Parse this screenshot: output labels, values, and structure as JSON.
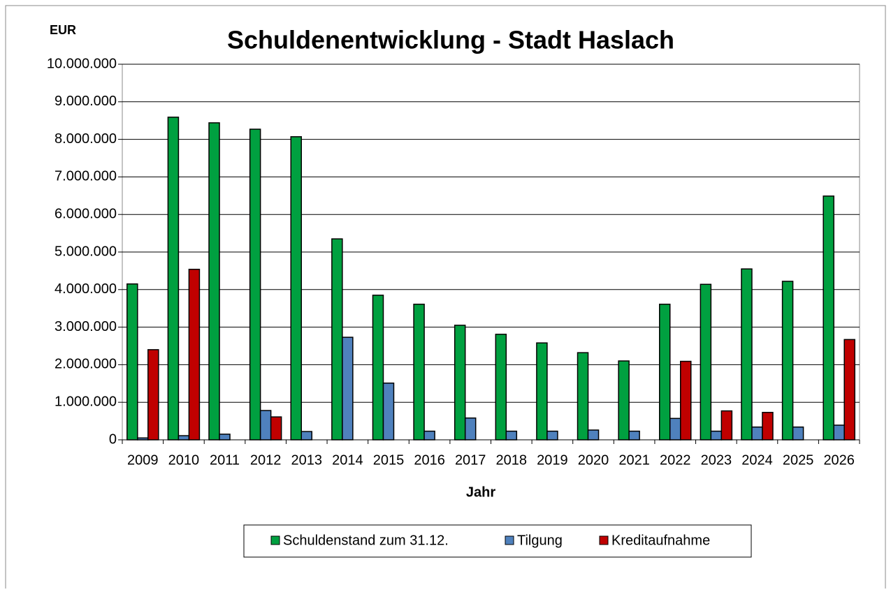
{
  "chart_data": {
    "type": "bar",
    "title": "Schuldenentwicklung - Stadt Haslach",
    "y_label": "EUR",
    "x_label": "Jahr",
    "categories": [
      "2009",
      "2010",
      "2011",
      "2012",
      "2013",
      "2014",
      "2015",
      "2016",
      "2017",
      "2018",
      "2019",
      "2020",
      "2021",
      "2022",
      "2023",
      "2024",
      "2025",
      "2026"
    ],
    "series": [
      {
        "name": "Schuldenstand zum 31.12.",
        "color": "#00a040",
        "values": [
          4150000,
          8590000,
          8440000,
          8270000,
          8070000,
          5350000,
          3850000,
          3610000,
          3050000,
          2810000,
          2580000,
          2320000,
          2100000,
          3610000,
          4140000,
          4550000,
          4220000,
          6490000
        ]
      },
      {
        "name": "Tilgung",
        "color": "#4f81bd",
        "values": [
          50000,
          110000,
          150000,
          780000,
          220000,
          2730000,
          1510000,
          230000,
          580000,
          230000,
          230000,
          260000,
          230000,
          570000,
          230000,
          340000,
          340000,
          390000
        ]
      },
      {
        "name": "Kreditaufnahme",
        "color": "#c00000",
        "values": [
          2400000,
          4540000,
          0,
          610000,
          0,
          0,
          0,
          0,
          0,
          0,
          0,
          0,
          0,
          2090000,
          770000,
          730000,
          0,
          2670000
        ]
      }
    ],
    "ylim": [
      0,
      10000000
    ],
    "yticks": [
      0,
      {
        "value": 1000000,
        "label": "1.000.000"
      },
      {
        "value": 2000000,
        "label": "2.000.000"
      },
      {
        "value": 3000000,
        "label": "3.000.000"
      },
      {
        "value": 4000000,
        "label": "4.000.000"
      },
      {
        "value": 5000000,
        "label": "5.000.000"
      },
      {
        "value": 6000000,
        "label": "6.000.000"
      },
      {
        "value": 7000000,
        "label": "7.000.000"
      },
      {
        "value": 8000000,
        "label": "8.000.000"
      },
      {
        "value": 9000000,
        "label": "9.000.000"
      },
      {
        "value": 10000000,
        "label": "10.000.000"
      }
    ],
    "grid": true,
    "legend": "bottom"
  }
}
